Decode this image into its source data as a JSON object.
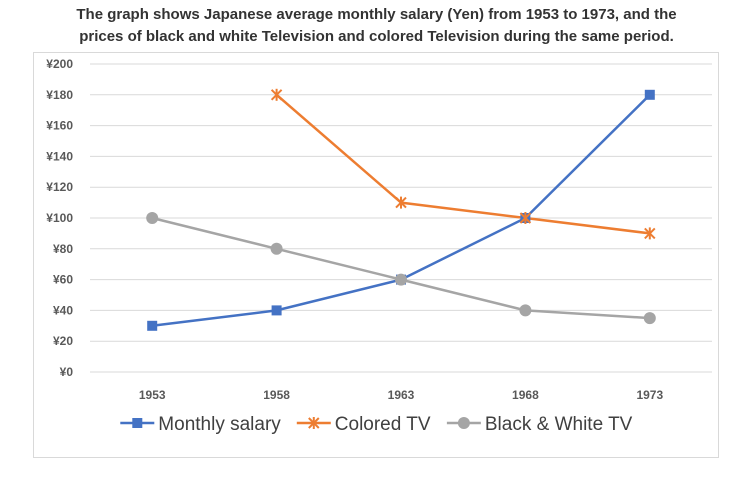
{
  "chart_data": {
    "type": "line",
    "title_lines": [
      "The graph shows Japanese average monthly salary (Yen) from 1953 to 1973, and the",
      "prices of black and white Television and colored Television during the same period."
    ],
    "categories": [
      "1953",
      "1958",
      "1963",
      "1968",
      "1973"
    ],
    "ylim": [
      0,
      200
    ],
    "yticks": [
      "¥0",
      "¥20",
      "¥40",
      "¥60",
      "¥80",
      "¥100",
      "¥120",
      "¥140",
      "¥160",
      "¥180",
      "¥200"
    ],
    "grid": true,
    "legend_position": "bottom",
    "series": [
      {
        "name": "Monthly salary",
        "values": [
          30,
          40,
          60,
          100,
          180
        ],
        "color": "#4472c4",
        "marker": "square"
      },
      {
        "name": "Colored TV",
        "values": [
          null,
          180,
          110,
          100,
          90
        ],
        "color": "#ed7d31",
        "marker": "star"
      },
      {
        "name": "Black & White TV",
        "values": [
          100,
          80,
          60,
          40,
          35
        ],
        "color": "#a5a5a5",
        "marker": "circle"
      }
    ]
  }
}
